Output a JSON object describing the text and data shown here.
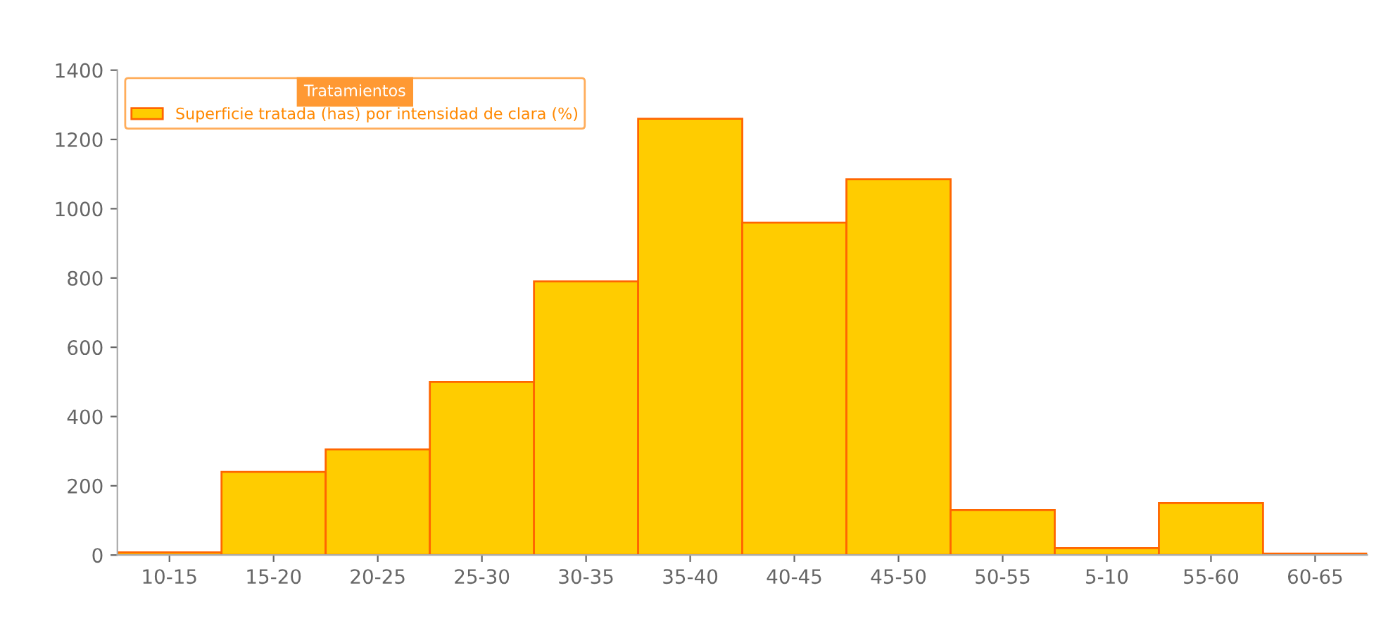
{
  "chart_data": {
    "type": "bar",
    "categories": [
      "10-15",
      "15-20",
      "20-25",
      "25-30",
      "30-35",
      "35-40",
      "40-45",
      "45-50",
      "50-55",
      "5-10",
      "55-60",
      "60-65"
    ],
    "series": [
      {
        "name": "Superficie tratada (has) por intensidad de clara (%)",
        "color": "#ffcc00",
        "values": [
          8,
          240,
          305,
          500,
          790,
          1260,
          960,
          1085,
          130,
          20,
          150,
          4
        ]
      }
    ],
    "legend_title": "Tratamientos",
    "legend": "top left",
    "grid": false,
    "ylim": [
      0,
      1400
    ],
    "yticks": [
      0,
      200,
      400,
      600,
      800,
      1000,
      1200,
      1400
    ]
  }
}
